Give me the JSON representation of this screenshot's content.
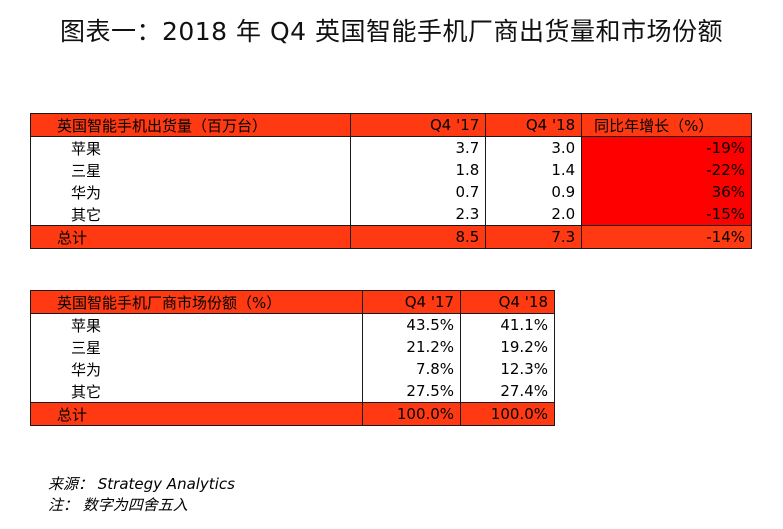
{
  "title": "图表一：2018 年 Q4 英国智能手机厂商出货量和市场份额",
  "table1": {
    "headers": [
      "英国智能手机出货量（百万台）",
      "Q4 '17",
      "Q4 '18",
      "同比年增长（%）"
    ],
    "rows": [
      {
        "label": "苹果",
        "q4_17": "3.7",
        "q4_18": "3.0",
        "growth": "-19%"
      },
      {
        "label": "三星",
        "q4_17": "1.8",
        "q4_18": "1.4",
        "growth": "-22%"
      },
      {
        "label": "华为",
        "q4_17": "0.7",
        "q4_18": "0.9",
        "growth": "36%"
      },
      {
        "label": "其它",
        "q4_17": "2.3",
        "q4_18": "2.0",
        "growth": "-15%"
      }
    ],
    "total": {
      "label": "总计",
      "q4_17": "8.5",
      "q4_18": "7.3",
      "growth": "-14%"
    }
  },
  "table2": {
    "headers": [
      "英国智能手机厂商市场份额（%）",
      "Q4 '17",
      "Q4 '18"
    ],
    "rows": [
      {
        "label": "苹果",
        "q4_17": "43.5%",
        "q4_18": "41.1%"
      },
      {
        "label": "三星",
        "q4_17": "21.2%",
        "q4_18": "19.2%"
      },
      {
        "label": "华为",
        "q4_17": "7.8%",
        "q4_18": "12.3%"
      },
      {
        "label": "其它",
        "q4_17": "27.5%",
        "q4_18": "27.4%"
      }
    ],
    "total": {
      "label": "总计",
      "q4_17": "100.0%",
      "q4_18": "100.0%"
    }
  },
  "notes": {
    "source": "来源： Strategy Analytics",
    "note": "注： 数字为四舍五入"
  },
  "colors": {
    "header_bg": "#ff3a12",
    "growth_bg": "#ff0000"
  }
}
